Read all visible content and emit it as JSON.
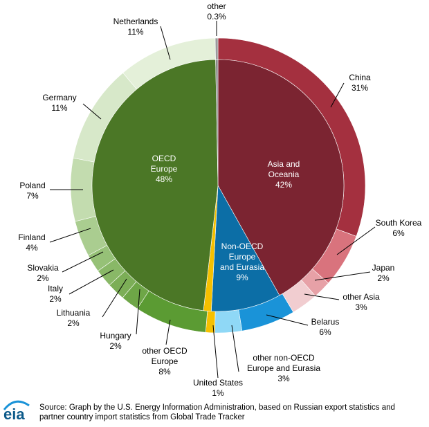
{
  "chart_data": {
    "type": "sunburst",
    "inner": {
      "categories": [
        [
          "Asia and",
          "Oceania"
        ],
        [
          "Non-OECD",
          "Europe",
          "and Eurasia"
        ],
        null,
        [
          "OECD",
          "Europe"
        ],
        null
      ],
      "values": [
        42,
        9,
        1,
        48,
        0.3
      ],
      "value_labels": [
        "42%",
        "9%",
        null,
        "48%",
        null
      ],
      "colors": [
        "#7b2431",
        "#0c6ea6",
        "#f5c000",
        "#4b7726",
        "#8a8a8a"
      ]
    },
    "outer": {
      "categories": [
        [
          "China"
        ],
        [
          "South Korea"
        ],
        [
          "Japan"
        ],
        [
          "other Asia"
        ],
        [
          "Belarus"
        ],
        [
          "other non-OECD",
          "Europe and Eurasia"
        ],
        [
          "United States"
        ],
        [
          "other OECD",
          "Europe"
        ],
        [
          "Hungary"
        ],
        [
          "Lithuania"
        ],
        [
          "Italy"
        ],
        [
          "Slovakia"
        ],
        [
          "Finland"
        ],
        [
          "Poland"
        ],
        [
          "Germany"
        ],
        [
          "Netherlands"
        ],
        [
          "other"
        ]
      ],
      "values": [
        31,
        6,
        2,
        3,
        6,
        3,
        1,
        8,
        2,
        2,
        2,
        2,
        4,
        7,
        11,
        11,
        0.3
      ],
      "value_labels": [
        "31%",
        "6%",
        "2%",
        "3%",
        "6%",
        "3%",
        "1%",
        "8%",
        "2%",
        "2%",
        "2%",
        "2%",
        "4%",
        "7%",
        "11%",
        "11%",
        "0.3%"
      ],
      "colors": [
        "#a4303f",
        "#d9737d",
        "#e7a1a7",
        "#f1cdd0",
        "#1a93d8",
        "#8fd8f6",
        "#f5c000",
        "#5b9b33",
        "#6ea647",
        "#7cae57",
        "#89b867",
        "#96c177",
        "#aacd90",
        "#c3dcaf",
        "#d7e8c9",
        "#e4f0d9",
        "#9a9a9a"
      ]
    },
    "source": [
      "Source: Graph by the U.S. Energy Information Administration, based on Russian export statistics and",
      "partner country import statistics from Global Trade Tracker"
    ],
    "logo": "eia"
  }
}
